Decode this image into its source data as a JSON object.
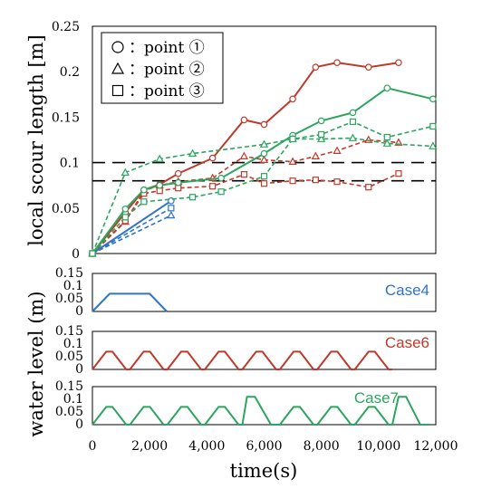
{
  "chart_data": [
    {
      "type": "line",
      "ylabel": "local scour length [m]",
      "ylim": [
        0,
        0.25
      ],
      "yticks": [
        "0",
        "0.05",
        "0.1",
        "0.15",
        "0.2",
        "0.25"
      ],
      "xlim": [
        0,
        12000
      ],
      "grid": false,
      "reference_lines": [
        {
          "y": 0.1,
          "style": "dashed",
          "color": "#000000"
        },
        {
          "y": 0.08,
          "style": "dashed",
          "color": "#000000"
        }
      ],
      "legend": {
        "placement": "top-left",
        "entries": [
          {
            "marker": "circle",
            "label": "：point ①"
          },
          {
            "marker": "triangle",
            "label": "：point ②"
          },
          {
            "marker": "square",
            "label": "：point ③"
          }
        ]
      },
      "series": [
        {
          "case": "Case4",
          "point": "①",
          "marker": "circle",
          "dash": false,
          "color": "#2e75c8",
          "x": [
            0,
            2750
          ],
          "y": [
            0,
            0.058
          ]
        },
        {
          "case": "Case4",
          "point": "②",
          "marker": "triangle",
          "dash": true,
          "color": "#2e75c8",
          "x": [
            0,
            2750
          ],
          "y": [
            0,
            0.042
          ]
        },
        {
          "case": "Case4",
          "point": "③",
          "marker": "square",
          "dash": true,
          "color": "#2e75c8",
          "x": [
            0,
            2750
          ],
          "y": [
            0,
            0.05
          ]
        },
        {
          "case": "Case6",
          "point": "①",
          "marker": "circle",
          "dash": false,
          "color": "#c0392b",
          "x": [
            0,
            1150,
            1800,
            2350,
            3000,
            4200,
            5300,
            6000,
            7000,
            7800,
            8550,
            9650,
            10700
          ],
          "y": [
            0,
            0.045,
            0.07,
            0.076,
            0.088,
            0.105,
            0.147,
            0.142,
            0.17,
            0.205,
            0.21,
            0.205,
            0.21
          ]
        },
        {
          "case": "Case6",
          "point": "②",
          "marker": "triangle",
          "dash": true,
          "color": "#c0392b",
          "x": [
            0,
            1150,
            1800,
            2350,
            3000,
            4200,
            5300,
            6000,
            7000,
            7800,
            8550,
            9650,
            10700
          ],
          "y": [
            0,
            0.035,
            0.069,
            0.075,
            0.079,
            0.083,
            0.107,
            0.103,
            0.101,
            0.107,
            0.113,
            0.125,
            0.122
          ]
        },
        {
          "case": "Case6",
          "point": "③",
          "marker": "square",
          "dash": true,
          "color": "#c0392b",
          "x": [
            0,
            1150,
            1800,
            2350,
            3000,
            4200,
            5300,
            6000,
            7000,
            7800,
            8550,
            9650,
            10700
          ],
          "y": [
            0,
            0.036,
            0.066,
            0.069,
            0.072,
            0.074,
            0.087,
            0.077,
            0.08,
            0.081,
            0.079,
            0.073,
            0.088
          ]
        },
        {
          "case": "Case7",
          "point": "①",
          "marker": "circle",
          "dash": false,
          "color": "#2ca55e",
          "x": [
            0,
            1150,
            1800,
            2350,
            3000,
            4500,
            6000,
            7000,
            8000,
            9100,
            10300,
            11900
          ],
          "y": [
            0,
            0.049,
            0.07,
            0.075,
            0.078,
            0.083,
            0.11,
            0.13,
            0.146,
            0.155,
            0.182,
            0.17
          ]
        },
        {
          "case": "Case7",
          "point": "②",
          "marker": "triangle",
          "dash": true,
          "color": "#2ca55e",
          "x": [
            0,
            1150,
            2350,
            3500,
            6000,
            7000,
            8000,
            9100,
            10300,
            11900
          ],
          "y": [
            0,
            0.089,
            0.104,
            0.11,
            0.12,
            0.126,
            0.126,
            0.127,
            0.121,
            0.118
          ]
        },
        {
          "case": "Case7",
          "point": "③",
          "marker": "square",
          "dash": true,
          "color": "#2ca55e",
          "x": [
            0,
            1150,
            1800,
            3500,
            4500,
            6000,
            7000,
            8000,
            9100,
            10300,
            11900
          ],
          "y": [
            0,
            0.04,
            0.057,
            0.062,
            0.068,
            0.085,
            0.126,
            0.131,
            0.145,
            0.128,
            0.14
          ]
        }
      ]
    },
    {
      "type": "line",
      "label": "Case4",
      "color": "#2e75c8",
      "ylim": [
        0,
        0.15
      ],
      "yticks": [
        "0.15",
        "0.1",
        "0.05",
        "0"
      ],
      "x": [
        0,
        600,
        2000,
        2600
      ],
      "y": [
        0,
        0.07,
        0.07,
        0
      ]
    },
    {
      "type": "line",
      "label": "Case6",
      "color": "#c0392b",
      "ylim": [
        0,
        0.15
      ],
      "yticks": [
        "0.15",
        "0.1",
        "0.05",
        "0"
      ],
      "x": [
        0,
        480,
        700,
        1180,
        1310,
        1790,
        2010,
        2490,
        2620,
        3100,
        3320,
        3800,
        3930,
        4410,
        4630,
        5110,
        5240,
        5720,
        5940,
        6420,
        6550,
        7030,
        7250,
        7730,
        7860,
        8340,
        8560,
        9040,
        9170,
        9650,
        9870,
        10350,
        10480
      ],
      "y": [
        0,
        0.07,
        0.07,
        0,
        0,
        0.07,
        0.07,
        0,
        0,
        0.07,
        0.07,
        0,
        0,
        0.07,
        0.07,
        0,
        0,
        0.07,
        0.07,
        0,
        0,
        0.07,
        0.07,
        0,
        0,
        0.07,
        0.07,
        0,
        0,
        0.07,
        0.07,
        0,
        0
      ]
    },
    {
      "type": "line",
      "label": "Case7",
      "color": "#2ca55e",
      "ylim": [
        0,
        0.15
      ],
      "yticks": [
        "0.15",
        "0.1",
        "0.05",
        "0"
      ],
      "x": [
        0,
        480,
        700,
        1180,
        1310,
        1790,
        2010,
        2490,
        2620,
        3100,
        3320,
        3800,
        3930,
        4410,
        4630,
        5110,
        5240,
        5400,
        5680,
        6240,
        6550,
        7030,
        7250,
        7730,
        7860,
        8340,
        8560,
        9040,
        9170,
        9650,
        9870,
        10350,
        10480,
        10700,
        10960,
        11460,
        11760
      ],
      "y": [
        0,
        0.07,
        0.07,
        0,
        0,
        0.07,
        0.07,
        0,
        0,
        0.07,
        0.07,
        0,
        0,
        0.07,
        0.07,
        0,
        0,
        0.11,
        0.11,
        0,
        0,
        0.07,
        0.07,
        0,
        0,
        0.07,
        0.07,
        0,
        0,
        0.07,
        0.07,
        0,
        0,
        0.11,
        0.11,
        0,
        0
      ]
    }
  ],
  "shared_axis": {
    "xlabel": "time(s)",
    "xticks": [
      "0",
      "2,000",
      "4,000",
      "6,000",
      "8,000",
      "10,000",
      "12,000"
    ],
    "xtick_values": [
      0,
      2000,
      4000,
      6000,
      8000,
      10000,
      12000
    ],
    "ylabel_lower": "water level (m)"
  }
}
